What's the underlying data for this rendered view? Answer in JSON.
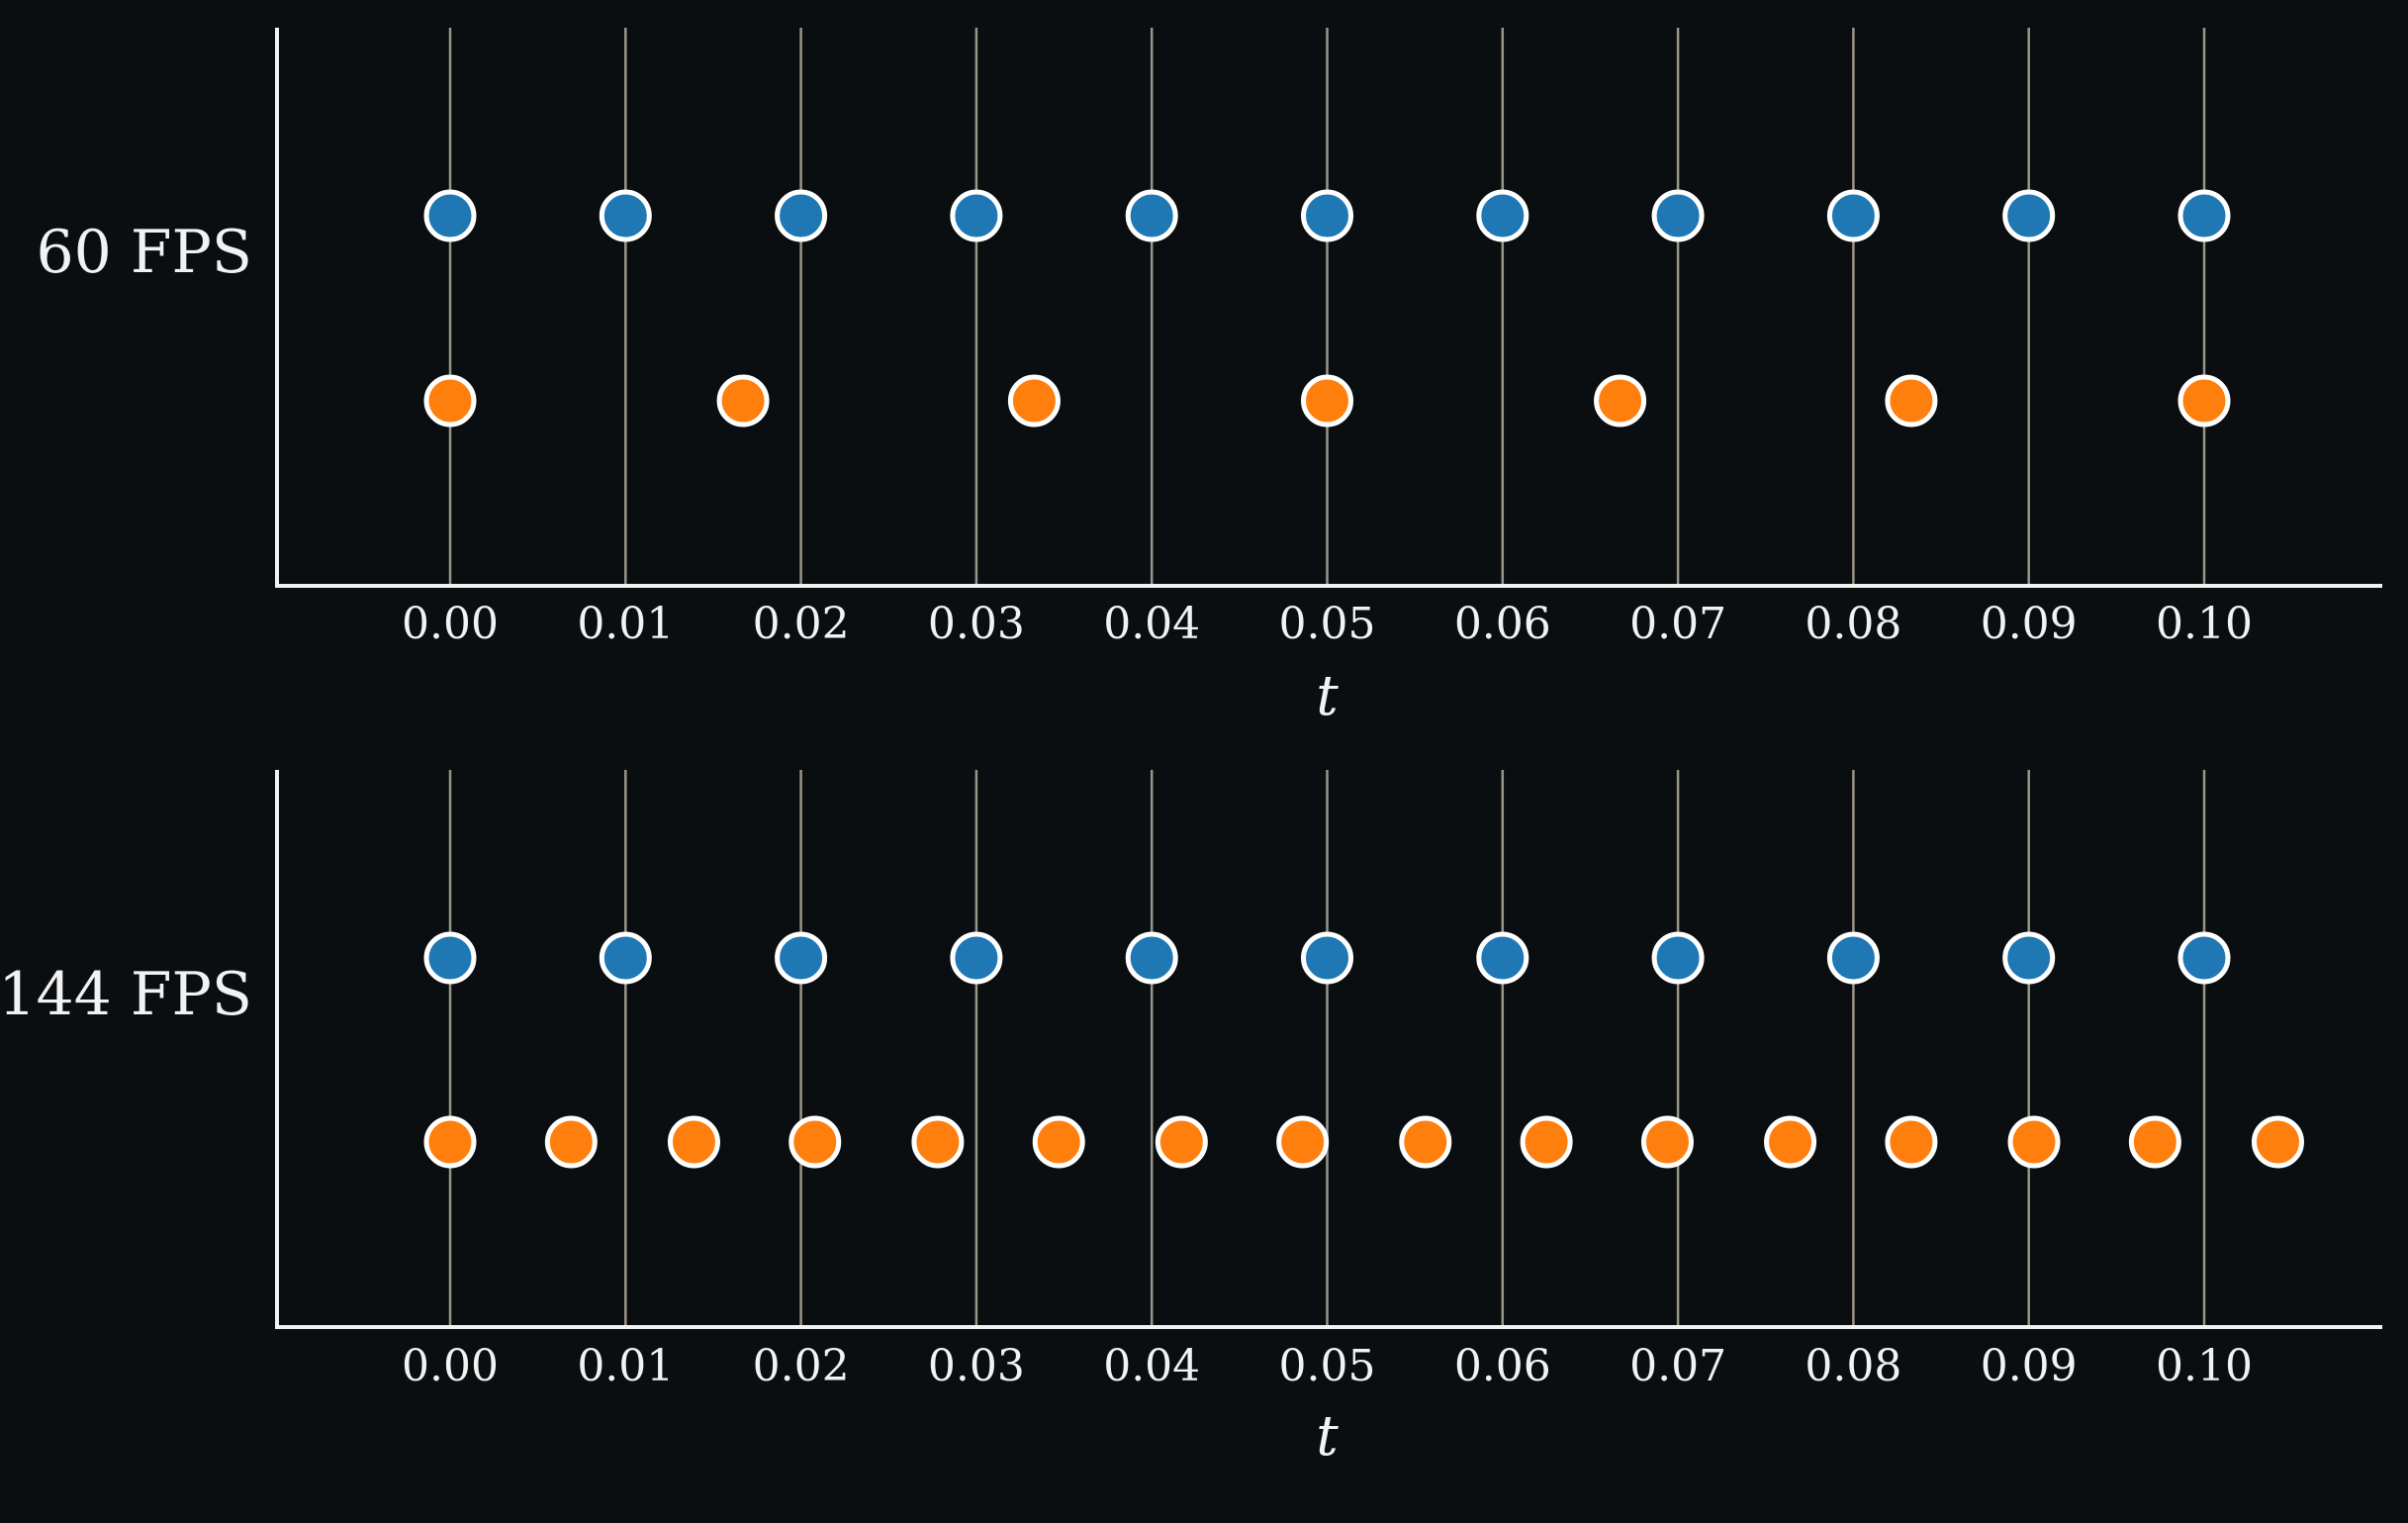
{
  "colors": {
    "background": "#0b0e10",
    "axis": "#f2f2f2",
    "text": "#f2f2f2",
    "gridline": "#9a958a",
    "blue": "#1f77b4",
    "orange": "#ff7f0e",
    "marker_edge": "#ffffff"
  },
  "chart_data": [
    {
      "type": "scatter",
      "ylabel": "60 FPS",
      "xlabel": "t",
      "xlim": [
        -0.01,
        0.11
      ],
      "xticks": [
        0.0,
        0.01,
        0.02,
        0.03,
        0.04,
        0.05,
        0.06,
        0.07,
        0.08,
        0.09,
        0.1
      ],
      "xtick_labels": [
        "0.00",
        "0.01",
        "0.02",
        "0.03",
        "0.04",
        "0.05",
        "0.06",
        "0.07",
        "0.08",
        "0.09",
        "0.10"
      ],
      "grid": "vertical lines at x ticks",
      "series": [
        {
          "color": "blue",
          "row": "upper",
          "x": [
            0.0,
            0.01,
            0.02,
            0.03,
            0.04,
            0.05,
            0.06,
            0.07,
            0.08,
            0.09,
            0.1
          ]
        },
        {
          "color": "orange",
          "row": "lower",
          "x": [
            0.0,
            0.0167,
            0.0333,
            0.05,
            0.0667,
            0.0833,
            0.1
          ]
        }
      ]
    },
    {
      "type": "scatter",
      "ylabel": "144 FPS",
      "xlabel": "t",
      "xlim": [
        -0.01,
        0.11
      ],
      "xticks": [
        0.0,
        0.01,
        0.02,
        0.03,
        0.04,
        0.05,
        0.06,
        0.07,
        0.08,
        0.09,
        0.1
      ],
      "xtick_labels": [
        "0.00",
        "0.01",
        "0.02",
        "0.03",
        "0.04",
        "0.05",
        "0.06",
        "0.07",
        "0.08",
        "0.09",
        "0.10"
      ],
      "grid": "vertical lines at x ticks",
      "series": [
        {
          "color": "blue",
          "row": "upper",
          "x": [
            0.0,
            0.01,
            0.02,
            0.03,
            0.04,
            0.05,
            0.06,
            0.07,
            0.08,
            0.09,
            0.1
          ]
        },
        {
          "color": "orange",
          "row": "lower",
          "x": [
            0.0,
            0.0069,
            0.0139,
            0.0208,
            0.0278,
            0.0347,
            0.0417,
            0.0486,
            0.0556,
            0.0625,
            0.0694,
            0.0764,
            0.0833,
            0.0903,
            0.0972,
            0.1042
          ]
        }
      ]
    }
  ]
}
